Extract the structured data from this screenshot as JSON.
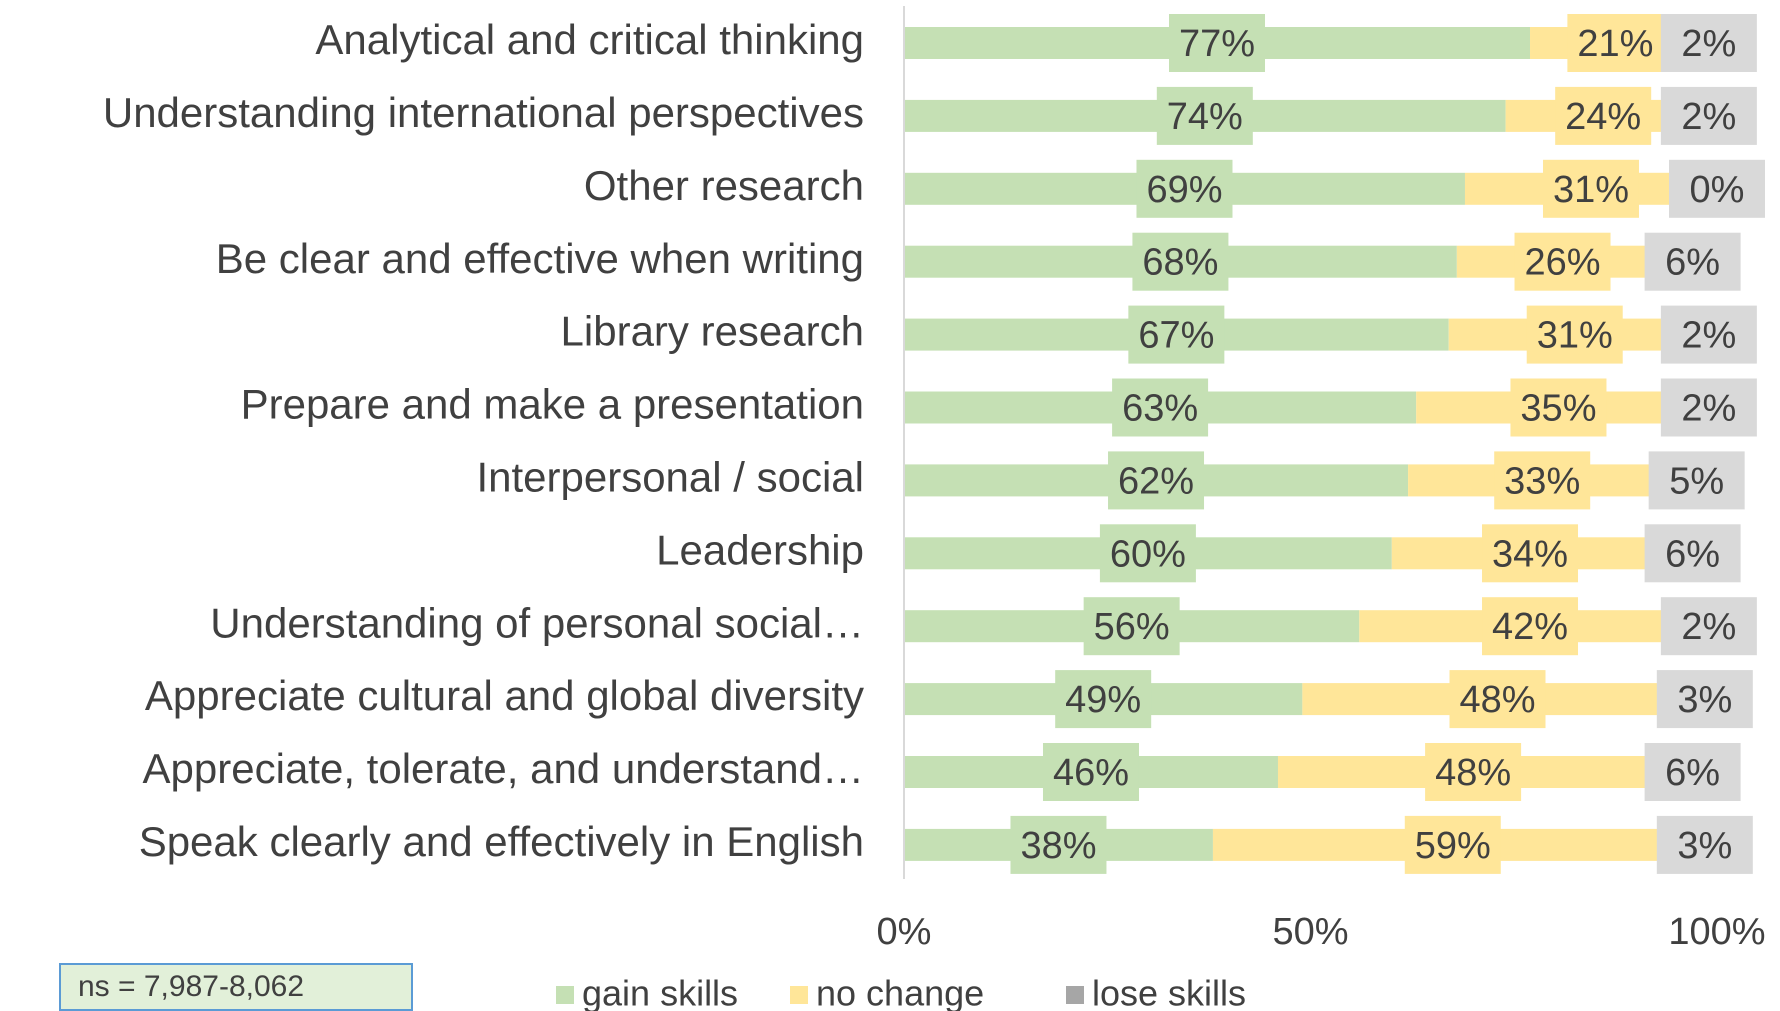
{
  "chart_data": {
    "type": "stacked_bar_horizontal",
    "categories": [
      "Analytical and critical thinking",
      "Understanding international perspectives",
      "Other research",
      "Be clear and effective when writing",
      "Library research",
      "Prepare and make a presentation",
      "Interpersonal / social",
      "Leadership",
      "Understanding of personal social…",
      "Appreciate cultural and global diversity",
      "Appreciate, tolerate, and understand…",
      "Speak clearly and effectively in English"
    ],
    "series": [
      {
        "name": "gain skills",
        "color": "#c5e0b4",
        "values": [
          77,
          74,
          69,
          68,
          67,
          63,
          62,
          60,
          56,
          49,
          46,
          38
        ],
        "value_labels": [
          "77%",
          "74%",
          "69%",
          "68%",
          "67%",
          "63%",
          "62%",
          "60%",
          "56%",
          "49%",
          "46%",
          "38%"
        ]
      },
      {
        "name": "no change",
        "color": "#ffe699",
        "values": [
          21,
          24,
          31,
          26,
          31,
          35,
          33,
          34,
          42,
          48,
          48,
          59
        ],
        "value_labels": [
          "21%",
          "24%",
          "31%",
          "26%",
          "31%",
          "35%",
          "33%",
          "34%",
          "42%",
          "48%",
          "48%",
          "59%"
        ]
      },
      {
        "name": "lose skills",
        "color": "#d9d9d9",
        "values": [
          2,
          2,
          0,
          6,
          2,
          2,
          5,
          6,
          2,
          3,
          6,
          3
        ],
        "value_labels": [
          "2%",
          "2%",
          "0%",
          "6%",
          "2%",
          "2%",
          "5%",
          "6%",
          "2%",
          "3%",
          "6%",
          "3%"
        ]
      }
    ],
    "xlim": [
      0,
      100
    ],
    "xticks": [
      {
        "value": 0,
        "label": "0%"
      },
      {
        "value": 50,
        "label": "50%"
      },
      {
        "value": 100,
        "label": "100%"
      }
    ],
    "legend": "bottom",
    "annotation": "ns = 7,987-8,062"
  }
}
